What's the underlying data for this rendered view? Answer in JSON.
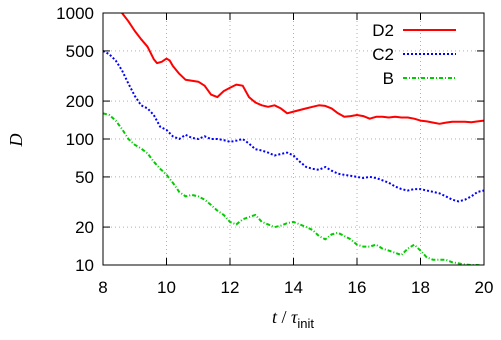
{
  "chart_data": {
    "type": "line",
    "xlabel": {
      "var": "t",
      "sep": " / ",
      "sym": "τ",
      "sub": "init"
    },
    "ylabel": "D",
    "xlim": [
      8,
      20
    ],
    "ylim": [
      10,
      1000
    ],
    "yscale": "log",
    "grid": true,
    "legend_position": "top-right",
    "x_ticks": [
      8,
      10,
      12,
      14,
      16,
      18,
      20
    ],
    "y_ticks": [
      10,
      20,
      50,
      100,
      200,
      500,
      1000
    ],
    "series": [
      {
        "name": "D2",
        "color": "#ff0000",
        "style": "solid",
        "points": [
          [
            8.6,
            1000
          ],
          [
            8.8,
            860
          ],
          [
            9.0,
            720
          ],
          [
            9.2,
            620
          ],
          [
            9.4,
            540
          ],
          [
            9.6,
            430
          ],
          [
            9.7,
            400
          ],
          [
            9.85,
            410
          ],
          [
            10.0,
            435
          ],
          [
            10.1,
            420
          ],
          [
            10.2,
            380
          ],
          [
            10.4,
            330
          ],
          [
            10.6,
            295
          ],
          [
            10.8,
            290
          ],
          [
            11.0,
            285
          ],
          [
            11.2,
            265
          ],
          [
            11.4,
            225
          ],
          [
            11.6,
            215
          ],
          [
            11.8,
            240
          ],
          [
            12.0,
            255
          ],
          [
            12.2,
            270
          ],
          [
            12.4,
            265
          ],
          [
            12.6,
            215
          ],
          [
            12.8,
            195
          ],
          [
            13.0,
            185
          ],
          [
            13.2,
            180
          ],
          [
            13.4,
            185
          ],
          [
            13.6,
            175
          ],
          [
            13.8,
            160
          ],
          [
            14.0,
            165
          ],
          [
            14.2,
            170
          ],
          [
            14.4,
            175
          ],
          [
            14.6,
            180
          ],
          [
            14.8,
            185
          ],
          [
            15.0,
            183
          ],
          [
            15.2,
            175
          ],
          [
            15.4,
            160
          ],
          [
            15.6,
            150
          ],
          [
            15.8,
            152
          ],
          [
            16.0,
            155
          ],
          [
            16.2,
            152
          ],
          [
            16.4,
            145
          ],
          [
            16.6,
            150
          ],
          [
            16.8,
            150
          ],
          [
            17.0,
            148
          ],
          [
            17.2,
            150
          ],
          [
            17.4,
            148
          ],
          [
            17.6,
            148
          ],
          [
            17.8,
            145
          ],
          [
            18.0,
            140
          ],
          [
            18.2,
            138
          ],
          [
            18.4,
            135
          ],
          [
            18.6,
            132
          ],
          [
            18.8,
            135
          ],
          [
            19.0,
            137
          ],
          [
            19.2,
            137
          ],
          [
            19.4,
            137
          ],
          [
            19.6,
            136
          ],
          [
            19.8,
            138
          ],
          [
            20.0,
            140
          ]
        ]
      },
      {
        "name": "C2",
        "color": "#0000ff",
        "style": "dotted",
        "points": [
          [
            8.0,
            500
          ],
          [
            8.2,
            470
          ],
          [
            8.4,
            420
          ],
          [
            8.6,
            350
          ],
          [
            8.8,
            275
          ],
          [
            9.0,
            220
          ],
          [
            9.2,
            185
          ],
          [
            9.4,
            175
          ],
          [
            9.6,
            155
          ],
          [
            9.8,
            125
          ],
          [
            10.0,
            118
          ],
          [
            10.2,
            105
          ],
          [
            10.4,
            100
          ],
          [
            10.6,
            108
          ],
          [
            10.8,
            102
          ],
          [
            11.0,
            100
          ],
          [
            11.2,
            105
          ],
          [
            11.4,
            100
          ],
          [
            11.6,
            100
          ],
          [
            11.8,
            98
          ],
          [
            12.0,
            95
          ],
          [
            12.2,
            97
          ],
          [
            12.4,
            100
          ],
          [
            12.6,
            92
          ],
          [
            12.8,
            83
          ],
          [
            13.0,
            81
          ],
          [
            13.2,
            78
          ],
          [
            13.4,
            74
          ],
          [
            13.6,
            76
          ],
          [
            13.8,
            78
          ],
          [
            14.0,
            74
          ],
          [
            14.2,
            66
          ],
          [
            14.4,
            60
          ],
          [
            14.6,
            58
          ],
          [
            14.8,
            57
          ],
          [
            15.0,
            60
          ],
          [
            15.2,
            56
          ],
          [
            15.4,
            53
          ],
          [
            15.6,
            52
          ],
          [
            15.8,
            51
          ],
          [
            16.0,
            50
          ],
          [
            16.2,
            49
          ],
          [
            16.4,
            50
          ],
          [
            16.6,
            49
          ],
          [
            16.8,
            47
          ],
          [
            17.0,
            45
          ],
          [
            17.2,
            42
          ],
          [
            17.4,
            40
          ],
          [
            17.6,
            39
          ],
          [
            17.8,
            40
          ],
          [
            18.0,
            40
          ],
          [
            18.2,
            39
          ],
          [
            18.4,
            38
          ],
          [
            18.6,
            37
          ],
          [
            18.8,
            35
          ],
          [
            19.0,
            33
          ],
          [
            19.2,
            32
          ],
          [
            19.4,
            33
          ],
          [
            19.6,
            35
          ],
          [
            19.8,
            38
          ],
          [
            20.0,
            39
          ]
        ]
      },
      {
        "name": "B",
        "color": "#00cc00",
        "style": "dashdot",
        "points": [
          [
            8.0,
            160
          ],
          [
            8.2,
            155
          ],
          [
            8.4,
            140
          ],
          [
            8.6,
            120
          ],
          [
            8.8,
            100
          ],
          [
            9.0,
            90
          ],
          [
            9.2,
            84
          ],
          [
            9.4,
            77
          ],
          [
            9.6,
            66
          ],
          [
            9.8,
            58
          ],
          [
            10.0,
            52
          ],
          [
            10.2,
            45
          ],
          [
            10.4,
            38
          ],
          [
            10.6,
            35
          ],
          [
            10.8,
            36
          ],
          [
            11.0,
            35
          ],
          [
            11.2,
            33
          ],
          [
            11.4,
            30
          ],
          [
            11.6,
            27
          ],
          [
            11.8,
            25
          ],
          [
            12.0,
            22
          ],
          [
            12.2,
            21
          ],
          [
            12.4,
            23
          ],
          [
            12.6,
            24
          ],
          [
            12.8,
            25
          ],
          [
            13.0,
            22
          ],
          [
            13.2,
            21
          ],
          [
            13.4,
            20
          ],
          [
            13.6,
            20.5
          ],
          [
            13.8,
            21.5
          ],
          [
            14.0,
            22
          ],
          [
            14.2,
            21
          ],
          [
            14.4,
            20
          ],
          [
            14.6,
            19
          ],
          [
            14.8,
            17
          ],
          [
            15.0,
            16
          ],
          [
            15.2,
            17.5
          ],
          [
            15.4,
            18
          ],
          [
            15.6,
            17
          ],
          [
            15.8,
            16
          ],
          [
            16.0,
            14.5
          ],
          [
            16.2,
            14
          ],
          [
            16.4,
            14
          ],
          [
            16.6,
            14.5
          ],
          [
            16.8,
            13.5
          ],
          [
            17.0,
            13
          ],
          [
            17.2,
            12.5
          ],
          [
            17.4,
            12
          ],
          [
            17.6,
            13.5
          ],
          [
            17.8,
            14.5
          ],
          [
            18.0,
            13
          ],
          [
            18.2,
            11.5
          ],
          [
            18.4,
            11
          ],
          [
            18.6,
            11
          ],
          [
            18.8,
            11
          ],
          [
            19.0,
            10.5
          ],
          [
            19.2,
            10.3
          ],
          [
            19.4,
            10.1
          ],
          [
            19.6,
            10
          ],
          [
            19.8,
            10
          ],
          [
            20.0,
            9.8
          ]
        ]
      }
    ]
  }
}
